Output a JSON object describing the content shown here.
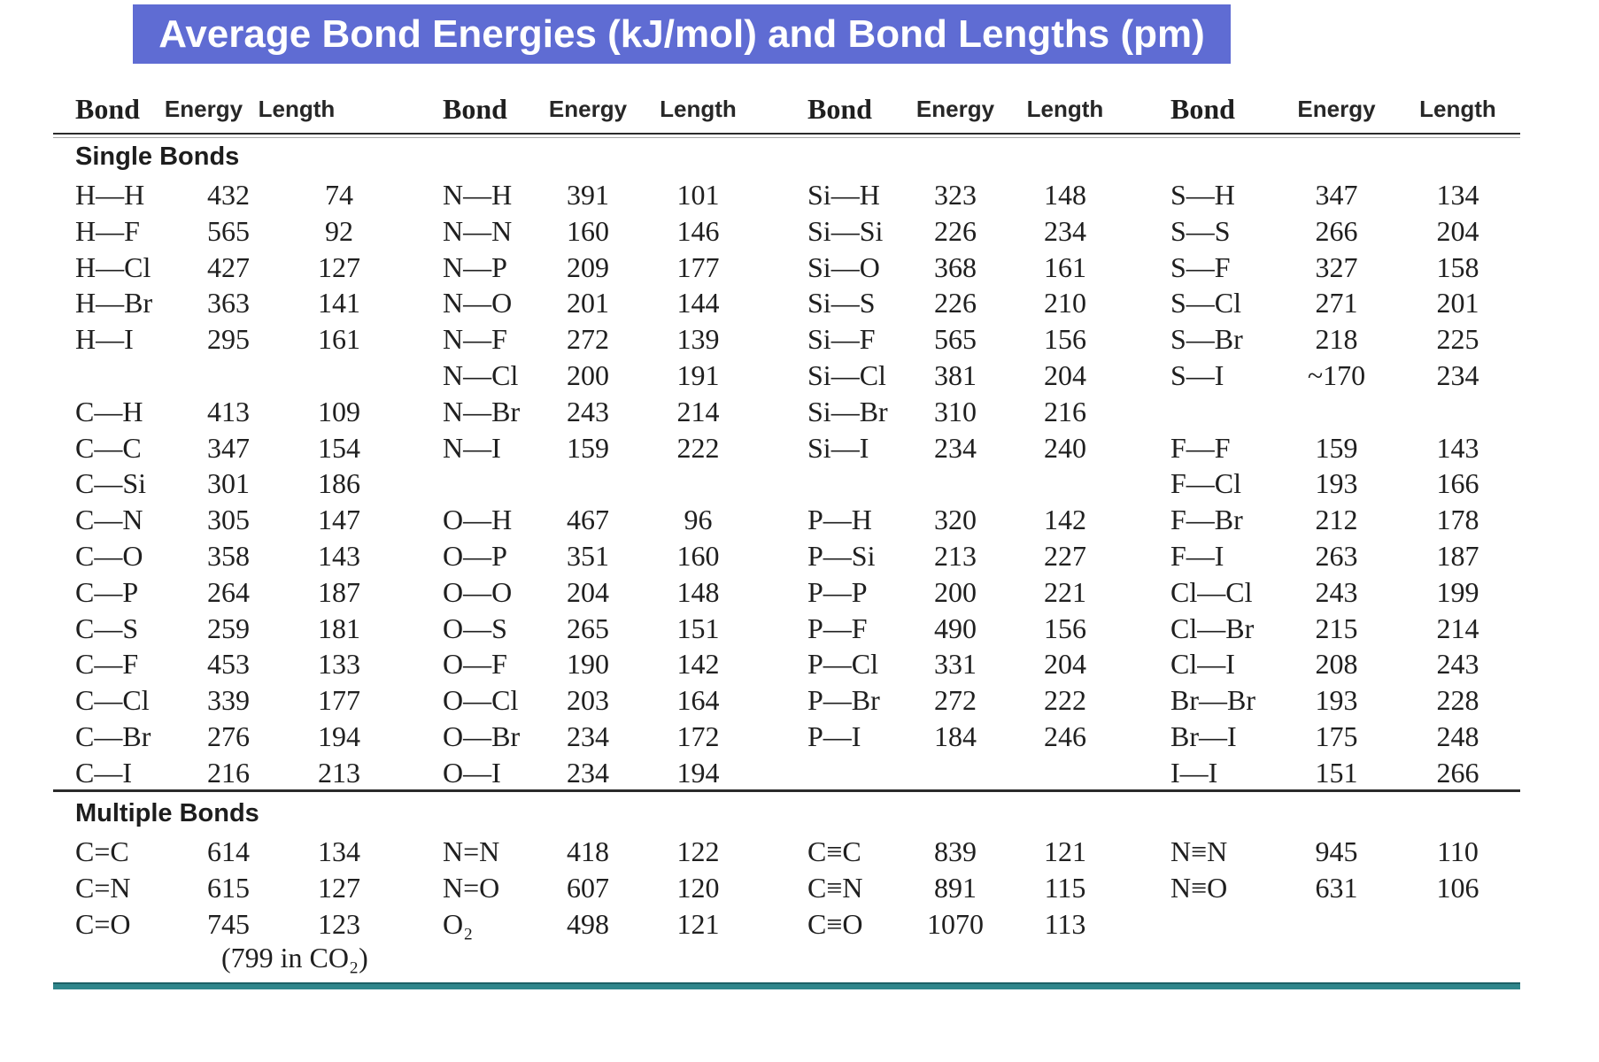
{
  "title": "Average Bond Energies (kJ/mol) and Bond Lengths (pm)",
  "colors": {
    "title_bg": "#5f6cd3",
    "title_text": "#ffffff",
    "accent_line": "#2f868b",
    "rule": "#2b2b2b"
  },
  "column_headers": [
    "Bond",
    "Energy",
    "Length",
    "Bond",
    "Energy",
    "Length",
    "Bond",
    "Energy",
    "Length",
    "Bond",
    "Energy",
    "Length"
  ],
  "sections": [
    {
      "label": "Single Bonds",
      "rows": [
        [
          "H—H",
          "432",
          "74",
          "N—H",
          "391",
          "101",
          "Si—H",
          "323",
          "148",
          "S—H",
          "347",
          "134"
        ],
        [
          "H—F",
          "565",
          "92",
          "N—N",
          "160",
          "146",
          "Si—Si",
          "226",
          "234",
          "S—S",
          "266",
          "204"
        ],
        [
          "H—Cl",
          "427",
          "127",
          "N—P",
          "209",
          "177",
          "Si—O",
          "368",
          "161",
          "S—F",
          "327",
          "158"
        ],
        [
          "H—Br",
          "363",
          "141",
          "N—O",
          "201",
          "144",
          "Si—S",
          "226",
          "210",
          "S—Cl",
          "271",
          "201"
        ],
        [
          "H—I",
          "295",
          "161",
          "N—F",
          "272",
          "139",
          "Si—F",
          "565",
          "156",
          "S—Br",
          "218",
          "225"
        ],
        [
          "",
          "",
          "",
          "N—Cl",
          "200",
          "191",
          "Si—Cl",
          "381",
          "204",
          "S—I",
          "~170",
          "234"
        ],
        [
          "C—H",
          "413",
          "109",
          "N—Br",
          "243",
          "214",
          "Si—Br",
          "310",
          "216",
          "",
          "",
          ""
        ],
        [
          "C—C",
          "347",
          "154",
          "N—I",
          "159",
          "222",
          "Si—I",
          "234",
          "240",
          "F—F",
          "159",
          "143"
        ],
        [
          "C—Si",
          "301",
          "186",
          "",
          "",
          "",
          "",
          "",
          "",
          "F—Cl",
          "193",
          "166"
        ],
        [
          "C—N",
          "305",
          "147",
          "O—H",
          "467",
          "96",
          "P—H",
          "320",
          "142",
          "F—Br",
          "212",
          "178"
        ],
        [
          "C—O",
          "358",
          "143",
          "O—P",
          "351",
          "160",
          "P—Si",
          "213",
          "227",
          "F—I",
          "263",
          "187"
        ],
        [
          "C—P",
          "264",
          "187",
          "O—O",
          "204",
          "148",
          "P—P",
          "200",
          "221",
          "Cl—Cl",
          "243",
          "199"
        ],
        [
          "C—S",
          "259",
          "181",
          "O—S",
          "265",
          "151",
          "P—F",
          "490",
          "156",
          "Cl—Br",
          "215",
          "214"
        ],
        [
          "C—F",
          "453",
          "133",
          "O—F",
          "190",
          "142",
          "P—Cl",
          "331",
          "204",
          "Cl—I",
          "208",
          "243"
        ],
        [
          "C—Cl",
          "339",
          "177",
          "O—Cl",
          "203",
          "164",
          "P—Br",
          "272",
          "222",
          "Br—Br",
          "193",
          "228"
        ],
        [
          "C—Br",
          "276",
          "194",
          "O—Br",
          "234",
          "172",
          "P—I",
          "184",
          "246",
          "Br—I",
          "175",
          "248"
        ],
        [
          "C—I",
          "216",
          "213",
          "O—I",
          "234",
          "194",
          "",
          "",
          "",
          "I—I",
          "151",
          "266"
        ]
      ]
    },
    {
      "label": "Multiple Bonds",
      "rows": [
        [
          "C=C",
          "614",
          "134",
          "N=N",
          "418",
          "122",
          "C≡C",
          "839",
          "121",
          "N≡N",
          "945",
          "110"
        ],
        [
          "C=N",
          "615",
          "127",
          "N=O",
          "607",
          "120",
          "C≡N",
          "891",
          "115",
          "N≡O",
          "631",
          "106"
        ],
        [
          "C=O",
          "745",
          "123",
          "O₂",
          "498",
          "121",
          "C≡O",
          "1070",
          "113",
          "",
          "",
          ""
        ]
      ],
      "footnote": "(799 in CO₂)"
    }
  ]
}
